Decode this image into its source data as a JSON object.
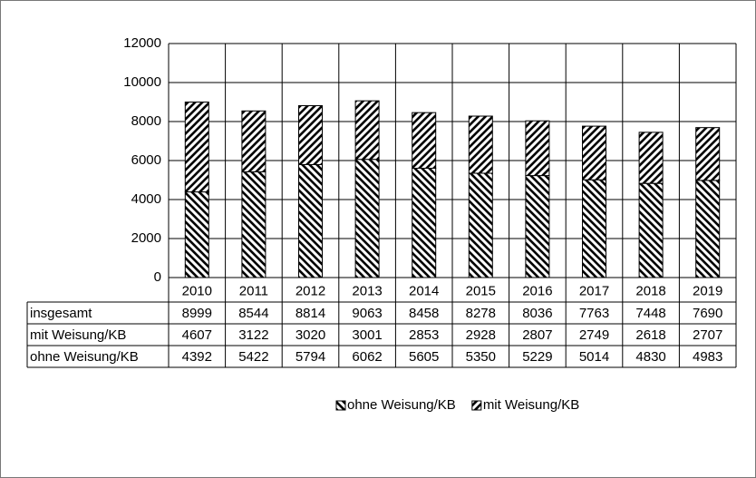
{
  "chart_data": {
    "type": "bar",
    "stacked": true,
    "categories": [
      "2010",
      "2011",
      "2012",
      "2013",
      "2014",
      "2015",
      "2016",
      "2017",
      "2018",
      "2019"
    ],
    "series": [
      {
        "name": "ohne Weisung/KB",
        "color": "#000000",
        "hatch": "backslash",
        "values": [
          4392,
          5422,
          5794,
          6062,
          5605,
          5350,
          5229,
          5014,
          4830,
          4983
        ]
      },
      {
        "name": "mit Weisung/KB",
        "color": "#000000",
        "hatch": "slash",
        "values": [
          4607,
          3122,
          3020,
          3001,
          2853,
          2928,
          2807,
          2749,
          2618,
          2707
        ]
      }
    ],
    "totals": {
      "label": "insgesamt",
      "values": [
        8999,
        8544,
        8814,
        9063,
        8458,
        8278,
        8036,
        7763,
        7448,
        7690
      ]
    },
    "ylim": [
      0,
      12000
    ],
    "yticks": [
      0,
      2000,
      4000,
      6000,
      8000,
      10000,
      12000
    ],
    "grid": true,
    "legend": "bottom"
  }
}
